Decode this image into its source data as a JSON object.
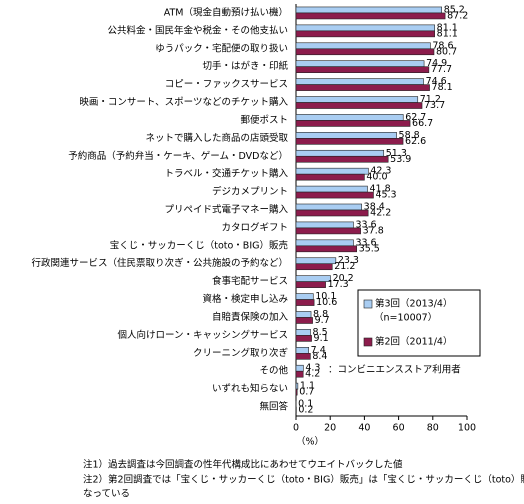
{
  "chart_data": {
    "type": "hbar",
    "categories": [
      "ATM（現金自動預け払い機）",
      "公共料金・国民年金や税金・その他支払い",
      "ゆうパック・宅配便の取り扱い",
      "切手・はがき・印紙",
      "コピー・ファックスサービス",
      "映画・コンサート、スポーツなどのチケット購入",
      "郵便ポスト",
      "ネットで購入した商品の店頭受取",
      "予約商品（予約弁当・ケーキ、ゲーム・DVDなど）",
      "トラベル・交通チケット購入",
      "デジカメプリント",
      "プリペイド式電子マネー購入",
      "カタログギフト",
      "宝くじ・サッカーくじ（toto・BIG）販売",
      "行政関連サービス（住民票取り次ぎ・公共施設の予約など）",
      "食事宅配サービス",
      "資格・検定申し込み",
      "自賠責保険の加入",
      "個人向けローン・キャッシングサービス",
      "クリーニング取り次ぎ",
      "その他",
      "いずれも知らない",
      "無回答"
    ],
    "series": [
      {
        "name": "第3回（2013/4）",
        "color": "#a9cdf2",
        "values": [
          85.2,
          81.1,
          78.6,
          74.9,
          74.6,
          71.2,
          62.7,
          58.8,
          51.3,
          42.3,
          41.8,
          38.4,
          33.6,
          33.6,
          23.3,
          20.2,
          10.1,
          8.8,
          8.5,
          7.4,
          4.3,
          1.1,
          0.1
        ],
        "value_labels": [
          "85.2",
          "81.1",
          "78.6",
          "74.9",
          "74.6",
          "71.2",
          "62.7",
          "58.8",
          "51.3",
          "42.3",
          "41.8",
          "38.4",
          "33.6",
          "33.6",
          "23.3",
          "20.2",
          "10.1",
          "8.8",
          "8.5",
          "7.4",
          "4.3",
          "1.1",
          "0.1"
        ]
      },
      {
        "name": "第2回（2011/4）",
        "color": "#8c1c4c",
        "values": [
          87.2,
          81.1,
          80.7,
          77.7,
          78.1,
          73.7,
          66.7,
          62.6,
          53.9,
          40.0,
          45.3,
          42.2,
          37.8,
          35.5,
          21.2,
          17.3,
          10.6,
          9.7,
          9.1,
          8.4,
          4.2,
          0.7,
          0.2
        ],
        "value_labels": [
          "87.2",
          "81.1",
          "80.7",
          "77.7",
          "78.1",
          "73.7",
          "66.7",
          "62.6",
          "53.9",
          "40.0",
          "45.3",
          "42.2",
          "37.8",
          "35.5",
          "21.2",
          "17.3",
          "10.6",
          "9.7",
          "9.1",
          "8.4",
          "4.2",
          "0.7",
          "0.2"
        ]
      }
    ],
    "sample_label": "（n=10007）",
    "respondents_note": "：コンビニエンスストア利用者",
    "x_label": "（%）",
    "xlim": [
      0,
      100
    ],
    "xticks": [
      0,
      20,
      40,
      60,
      80,
      100
    ],
    "notes": [
      "注1）過去調査は今回調査の性年代構成比にあわせてウエイトバックした値",
      "注2）第2回調査では「宝くじ・サッカーくじ（toto・BIG）販売」は「宝くじ・サッカーくじ（toto）販売」と",
      "なっている"
    ]
  }
}
